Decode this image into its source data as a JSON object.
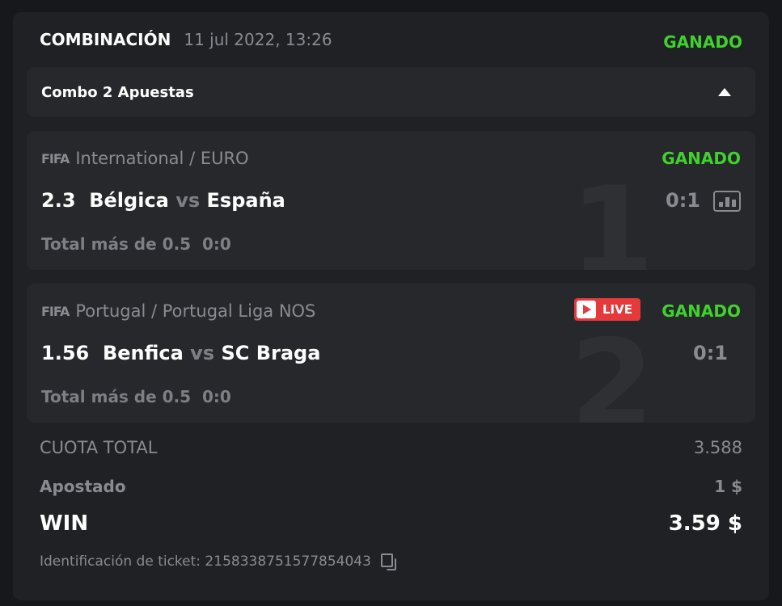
{
  "header": {
    "title": "COMBINACIÓN",
    "date": "11 jul 2022, 13:26",
    "status": "GANADO"
  },
  "combo": {
    "label": "Combo 2 Apuestas",
    "icon": "caret-up-icon"
  },
  "bets": [
    {
      "index": "1",
      "logo": "FIFA",
      "league": "International / EURO",
      "status": "GANADO",
      "odds": "2.3",
      "home": "Bélgica",
      "vs": "vs",
      "away": "España",
      "score": "0:1",
      "market": "Total más de 0.5",
      "market_score": "0:0",
      "live": false
    },
    {
      "index": "2",
      "logo": "FIFA",
      "league": "Portugal / Portugal Liga NOS",
      "status": "GANADO",
      "odds": "1.56",
      "home": "Benfica",
      "vs": "vs",
      "away": "SC Braga",
      "score": "0:1",
      "market": "Total más de 0.5",
      "market_score": "0:0",
      "live": true,
      "live_label": "LIVE"
    }
  ],
  "summary": {
    "total_odds_label": "CUOTA TOTAL",
    "total_odds": "3.588",
    "stake_label": "Apostado",
    "stake": "1 $",
    "win_label": "WIN",
    "win": "3.59 $"
  },
  "ticket": {
    "label": "Identificación de ticket: 2158338751577854043"
  },
  "colors": {
    "win_green": "#3fd22c",
    "live_red": "#e5393b"
  }
}
